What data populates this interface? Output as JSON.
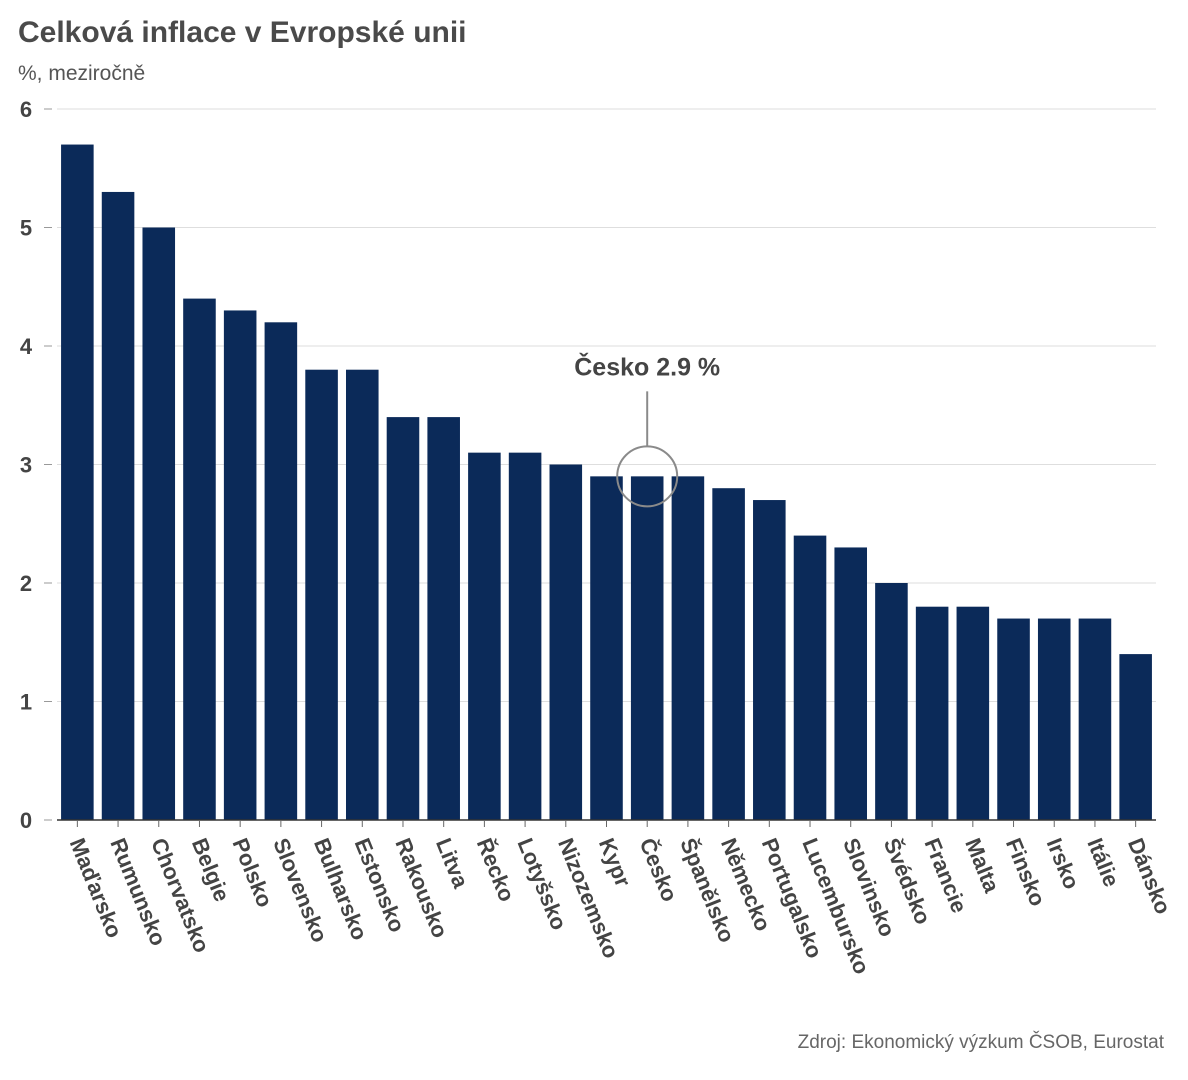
{
  "chart_data": {
    "type": "bar",
    "title": "Celková inflace v Evropské unii",
    "subtitle": "%, meziročně",
    "xlabel": "",
    "ylabel": "",
    "ylim": [
      0,
      6
    ],
    "yticks": [
      "0",
      "1",
      "2",
      "3",
      "4",
      "5",
      "6"
    ],
    "grid": true,
    "categories": [
      "Maďarsko",
      "Rumunsko",
      "Chorvatsko",
      "Belgie",
      "Polsko",
      "Slovensko",
      "Bulharsko",
      "Estonsko",
      "Rakousko",
      "Litva",
      "Řecko",
      "Lotyšsko",
      "Nizozemsko",
      "Kypr",
      "Česko",
      "Španělsko",
      "Německo",
      "Portugalsko",
      "Lucembursko",
      "Slovinsko",
      "Švédsko",
      "Francie",
      "Malta",
      "Finsko",
      "Irsko",
      "Itálie",
      "Dánsko"
    ],
    "values": [
      5.7,
      5.3,
      5.0,
      4.4,
      4.3,
      4.2,
      3.8,
      3.8,
      3.4,
      3.4,
      3.1,
      3.1,
      3.0,
      2.9,
      2.9,
      2.9,
      2.8,
      2.7,
      2.4,
      2.3,
      2.0,
      1.8,
      1.8,
      1.7,
      1.7,
      1.7,
      1.4
    ],
    "bar_color": "#0b2a59",
    "annotation": {
      "text": "Česko 2.9 %",
      "category": "Česko"
    },
    "source": "Zdroj: Ekonomický výzkum ČSOB, Eurostat"
  }
}
